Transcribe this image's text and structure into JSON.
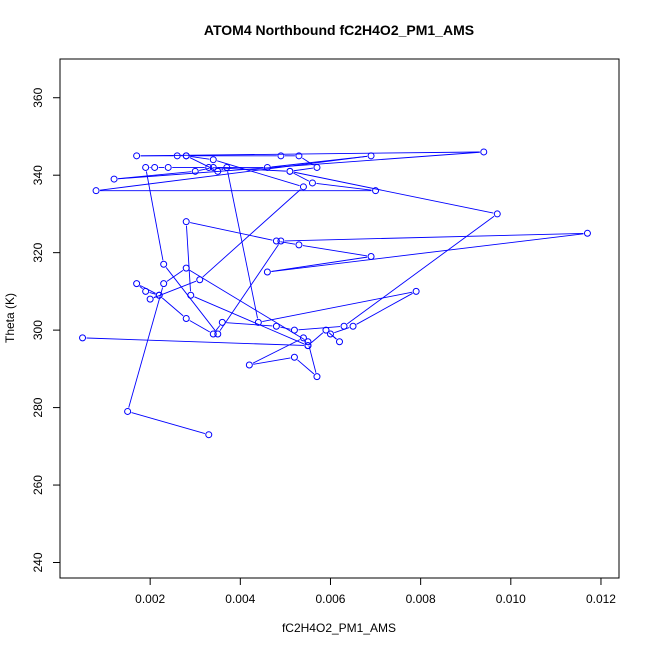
{
  "chart_data": {
    "type": "scatter",
    "title": "ATOM4 Northbound fC2H4O2_PM1_AMS",
    "xlabel": "fC2H4O2_PM1_AMS",
    "ylabel": "Theta (K)",
    "xlim": [
      0,
      0.0124
    ],
    "ylim": [
      236,
      370
    ],
    "x_ticks": [
      0.002,
      0.004,
      0.006,
      0.008,
      0.01,
      0.012
    ],
    "x_tick_labels": [
      "0.002",
      "0.004",
      "0.006",
      "0.008",
      "0.010",
      "0.012"
    ],
    "y_ticks": [
      240,
      260,
      280,
      300,
      320,
      340,
      360
    ],
    "y_tick_labels": [
      "240",
      "260",
      "280",
      "300",
      "320",
      "340",
      "360"
    ],
    "grid": false,
    "legend": "none",
    "series_color": "#0000ff",
    "markers": "open-circle",
    "connected": true,
    "series": [
      {
        "x": [
          0.0033,
          0.0015,
          0.0023,
          0.0028,
          0.0055,
          0.0057,
          0.0052,
          0.0042,
          0.0054,
          0.0055,
          0.0059,
          0.0062,
          0.006,
          0.0065,
          0.0079,
          0.0044,
          0.0037,
          0.0035,
          0.0028,
          0.0049,
          0.0053,
          0.0057,
          0.0051,
          0.0097,
          0.0063,
          0.0052,
          0.0048,
          0.0036,
          0.0034,
          0.0028,
          0.0022,
          0.0019,
          0.0017,
          0.0022,
          0.002,
          0.0031,
          0.0054,
          0.0034,
          0.0028,
          0.0026,
          0.0017,
          0.0094,
          0.0012,
          0.003,
          0.0034,
          0.0046,
          0.0069,
          0.0008,
          0.007,
          0.0056,
          0.0051,
          0.0033,
          0.0024,
          0.0021,
          0.0019,
          0.0023,
          0.0035,
          0.0049,
          0.0117,
          0.0046,
          0.0069,
          0.0053,
          0.0048,
          0.0028,
          0.0029,
          0.0055,
          0.0005
        ],
        "y": [
          273,
          279,
          312,
          316,
          297,
          288,
          293,
          291,
          298,
          296,
          300,
          297,
          299,
          301,
          310,
          302,
          342,
          341,
          345,
          345,
          345,
          342,
          341,
          330,
          301,
          300,
          301,
          302,
          299,
          303,
          309,
          310,
          312,
          309,
          308,
          313,
          337,
          344,
          345,
          345,
          345,
          346,
          339,
          341,
          342,
          342,
          345,
          336,
          336,
          338,
          341,
          342,
          342,
          342,
          342,
          317,
          299,
          323,
          325,
          315,
          319,
          322,
          323,
          328,
          309,
          296,
          298
        ]
      }
    ]
  }
}
